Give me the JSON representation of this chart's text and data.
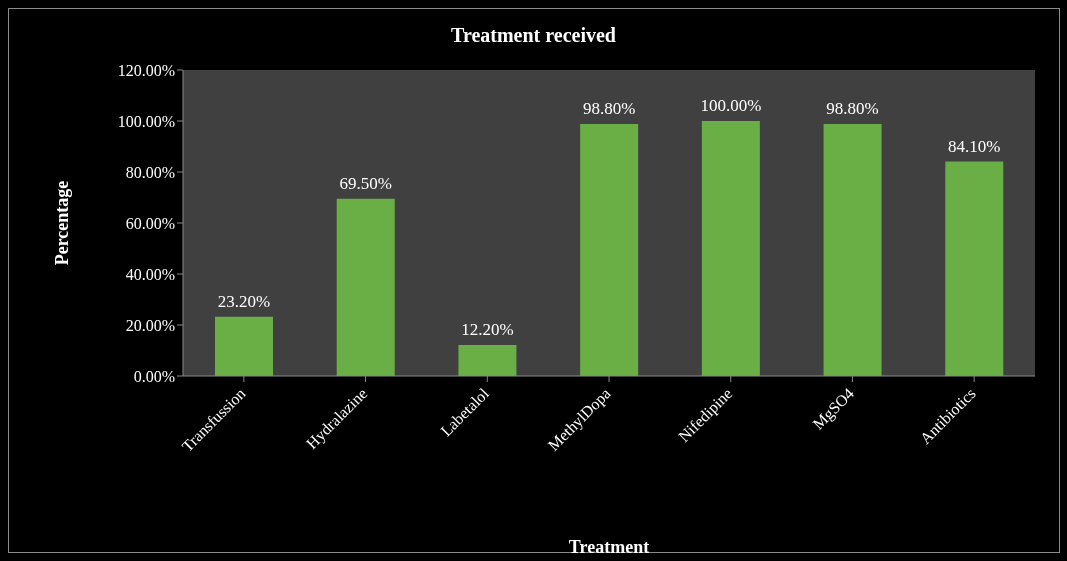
{
  "chart_data": {
    "type": "bar",
    "title": "Treatment received",
    "xlabel": "Treatment",
    "ylabel": "Percentage",
    "categories": [
      "Transfussion",
      "Hydralazine",
      "Labetalol",
      "MethylDopa",
      "Nifedipine",
      "MgSO4",
      "Antibiotics"
    ],
    "values": [
      23.2,
      69.5,
      12.2,
      98.8,
      100,
      98.8,
      84.1
    ],
    "value_labels": [
      "23.20%",
      "69.50%",
      "12.20%",
      "98.80%",
      "100.00%",
      "98.80%",
      "84.10%"
    ],
    "color": "#6aaf45",
    "ylim": [
      0,
      120
    ],
    "yticks": [
      {
        "value": 0,
        "label": "0.00%"
      },
      {
        "value": 20,
        "label": "20.00%"
      },
      {
        "value": 40,
        "label": "40.00%"
      },
      {
        "value": 60,
        "label": "60.00%"
      },
      {
        "value": 80,
        "label": "80.00%"
      },
      {
        "value": 100,
        "label": "100.00%"
      },
      {
        "value": 120,
        "label": "120.00%"
      }
    ]
  }
}
